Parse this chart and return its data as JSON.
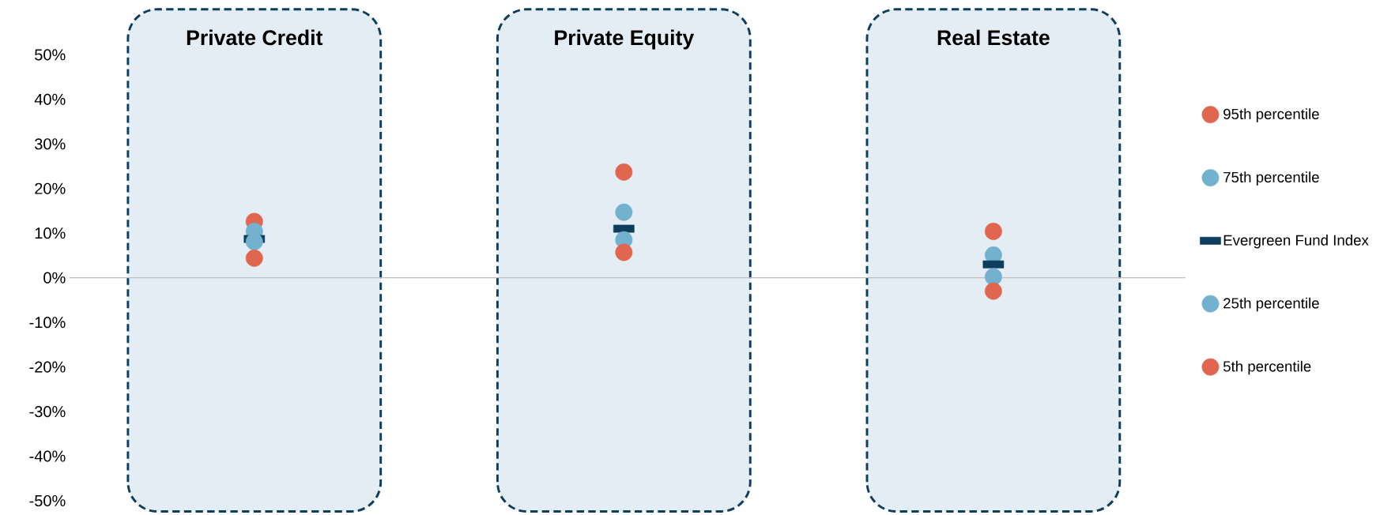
{
  "chart_data": {
    "type": "scatter",
    "categories": [
      "Private Credit",
      "Private Equity",
      "Real Estate"
    ],
    "series": [
      {
        "name": "95th percentile",
        "color": "#e06650",
        "marker": "circle",
        "values": [
          12.6,
          23.7,
          10.4
        ]
      },
      {
        "name": "75th percentile",
        "color": "#72b2cf",
        "marker": "circle",
        "values": [
          10.4,
          14.7,
          5.1
        ]
      },
      {
        "name": "Evergreen Fund Index",
        "color": "#0e3e5e",
        "marker": "square",
        "values": [
          8.7,
          11.0,
          3.0
        ]
      },
      {
        "name": "25th percentile",
        "color": "#72b2cf",
        "marker": "circle",
        "values": [
          8.1,
          8.5,
          0.2
        ]
      },
      {
        "name": "5th percentile",
        "color": "#e06650",
        "marker": "circle",
        "values": [
          4.4,
          5.7,
          -3.0
        ]
      }
    ],
    "ylim": [
      -50,
      50
    ],
    "yticks": [
      {
        "value": -50,
        "label": "-50%"
      },
      {
        "value": -40,
        "label": "-40%"
      },
      {
        "value": -30,
        "label": "-30%"
      },
      {
        "value": -20,
        "label": "-20%"
      },
      {
        "value": -10,
        "label": "-10%"
      },
      {
        "value": 0,
        "label": "0%"
      },
      {
        "value": 10,
        "label": "10%"
      },
      {
        "value": 20,
        "label": "20%"
      },
      {
        "value": 30,
        "label": "30%"
      },
      {
        "value": 40,
        "label": "40%"
      },
      {
        "value": 50,
        "label": "50%"
      }
    ],
    "ref_lines": [
      {
        "axis": "y",
        "value": 0,
        "color": "#bfbfbf"
      }
    ],
    "grid": false,
    "legend": "right"
  }
}
